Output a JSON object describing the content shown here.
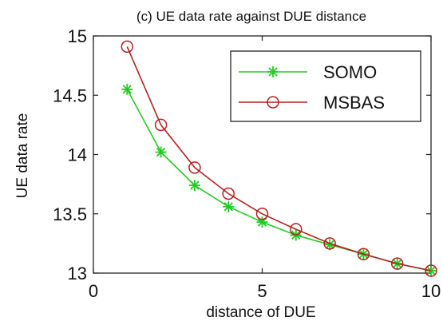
{
  "chart_data": {
    "type": "line",
    "title": "(c) UE data rate against DUE distance",
    "xlabel": "distance of DUE",
    "ylabel": "UE data rate",
    "xlim": [
      0,
      10
    ],
    "ylim": [
      13,
      15
    ],
    "xticks": [
      0,
      5,
      10
    ],
    "yticks": [
      13,
      13.5,
      14,
      14.5,
      15
    ],
    "grid": false,
    "legend_position": "top-right",
    "x": [
      1,
      2,
      3,
      4,
      5,
      6,
      7,
      8,
      9,
      10
    ],
    "series": [
      {
        "name": "SOMO",
        "color": "#22cc22",
        "marker": "asterisk",
        "values": [
          14.55,
          14.02,
          13.74,
          13.56,
          13.43,
          13.32,
          13.24,
          13.16,
          13.08,
          13.02
        ]
      },
      {
        "name": "MSBAS",
        "color": "#b22222",
        "marker": "circle",
        "values": [
          14.91,
          14.25,
          13.89,
          13.67,
          13.5,
          13.37,
          13.25,
          13.16,
          13.08,
          13.02
        ]
      }
    ]
  }
}
